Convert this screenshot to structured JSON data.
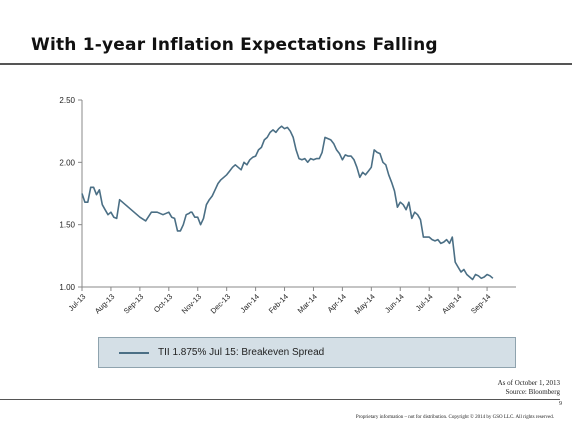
{
  "slide": {
    "title": "With 1-year Inflation Expectations Falling",
    "as_of": "As of October 1, 2013",
    "source": "Source: Bloomberg",
    "page_number": "9",
    "footer": "Proprietary information – not for distribution. Copyright © 2014 by GSO LLC. All rights reserved."
  },
  "colors": {
    "series_line": "#4b6f85",
    "legend_bg": "#d4dfe6",
    "legend_border": "#8fa3ae",
    "axis": "#888888"
  },
  "chart_data": {
    "type": "line",
    "title": "",
    "xlabel": "",
    "ylabel": "",
    "ylim": [
      1.0,
      2.5
    ],
    "yticks": [
      "1.00",
      "1.50",
      "2.00",
      "2.50"
    ],
    "yticks_values": [
      1.0,
      1.5,
      2.0,
      2.5
    ],
    "xticks": [
      "Jul-13",
      "Aug-13",
      "Sep-13",
      "Oct-13",
      "Nov-13",
      "Dec-13",
      "Jan-14",
      "Feb-14",
      "Mar-14",
      "Apr-14",
      "May-14",
      "Jun-14",
      "Jul-14",
      "Aug-14",
      "Sep-14"
    ],
    "grid": false,
    "legend_position": "bottom",
    "series": [
      {
        "name": "TII 1.875% Jul 15: Breakeven Spread",
        "x_months": [
          0,
          0.1,
          0.2,
          0.3,
          0.4,
          0.5,
          0.6,
          0.7,
          0.8,
          0.9,
          1.0,
          1.1,
          1.2,
          1.3,
          1.4,
          1.5,
          1.6,
          1.7,
          1.8,
          1.9,
          2.0,
          2.2,
          2.4,
          2.6,
          2.8,
          3.0,
          3.1,
          3.2,
          3.3,
          3.4,
          3.5,
          3.6,
          3.7,
          3.75,
          3.8,
          3.9,
          4.0,
          4.1,
          4.2,
          4.3,
          4.4,
          4.5,
          4.6,
          4.7,
          4.8,
          4.9,
          5.0,
          5.1,
          5.2,
          5.3,
          5.4,
          5.5,
          5.6,
          5.7,
          5.8,
          5.9,
          6.0,
          6.1,
          6.2,
          6.3,
          6.4,
          6.5,
          6.6,
          6.7,
          6.8,
          6.9,
          7.0,
          7.1,
          7.2,
          7.3,
          7.4,
          7.5,
          7.6,
          7.7,
          7.8,
          7.9,
          8.0,
          8.1,
          8.2,
          8.3,
          8.4,
          8.5,
          8.6,
          8.7,
          8.8,
          8.9,
          9.0,
          9.1,
          9.2,
          9.3,
          9.4,
          9.5,
          9.6,
          9.7,
          9.8,
          9.9,
          10.0,
          10.1,
          10.2,
          10.3,
          10.4,
          10.5,
          10.6,
          10.7,
          10.8,
          10.9,
          11.0,
          11.1,
          11.2,
          11.3,
          11.4,
          11.5,
          11.6,
          11.7,
          11.8,
          11.9,
          12.0,
          12.1,
          12.2,
          12.3,
          12.4,
          12.5,
          12.6,
          12.7,
          12.8,
          12.9,
          13.0,
          13.1,
          13.2,
          13.3,
          13.4,
          13.5,
          13.6,
          13.7,
          13.8,
          13.9,
          14.0,
          14.1,
          14.2
        ],
        "values": [
          1.75,
          1.68,
          1.68,
          1.8,
          1.8,
          1.74,
          1.78,
          1.66,
          1.62,
          1.58,
          1.6,
          1.56,
          1.55,
          1.7,
          1.68,
          1.66,
          1.64,
          1.62,
          1.6,
          1.58,
          1.56,
          1.53,
          1.6,
          1.6,
          1.58,
          1.6,
          1.56,
          1.55,
          1.45,
          1.45,
          1.5,
          1.58,
          1.59,
          1.6,
          1.6,
          1.56,
          1.56,
          1.5,
          1.55,
          1.66,
          1.7,
          1.73,
          1.78,
          1.83,
          1.86,
          1.88,
          1.9,
          1.93,
          1.96,
          1.98,
          1.96,
          1.94,
          2.0,
          1.98,
          2.02,
          2.04,
          2.05,
          2.1,
          2.12,
          2.18,
          2.2,
          2.24,
          2.26,
          2.24,
          2.27,
          2.29,
          2.27,
          2.28,
          2.25,
          2.2,
          2.1,
          2.03,
          2.02,
          2.03,
          2.0,
          2.03,
          2.02,
          2.03,
          2.03,
          2.08,
          2.2,
          2.19,
          2.18,
          2.15,
          2.1,
          2.07,
          2.02,
          2.06,
          2.05,
          2.05,
          2.02,
          1.96,
          1.88,
          1.92,
          1.9,
          1.93,
          1.96,
          2.1,
          2.08,
          2.07,
          2.0,
          1.98,
          1.9,
          1.84,
          1.77,
          1.64,
          1.68,
          1.66,
          1.62,
          1.68,
          1.55,
          1.6,
          1.58,
          1.54,
          1.4,
          1.4,
          1.4,
          1.38,
          1.37,
          1.38,
          1.35,
          1.36,
          1.38,
          1.35,
          1.4,
          1.2,
          1.16,
          1.12,
          1.14,
          1.1,
          1.08,
          1.06,
          1.1,
          1.09,
          1.07,
          1.08,
          1.1,
          1.09,
          1.07
        ]
      }
    ]
  }
}
